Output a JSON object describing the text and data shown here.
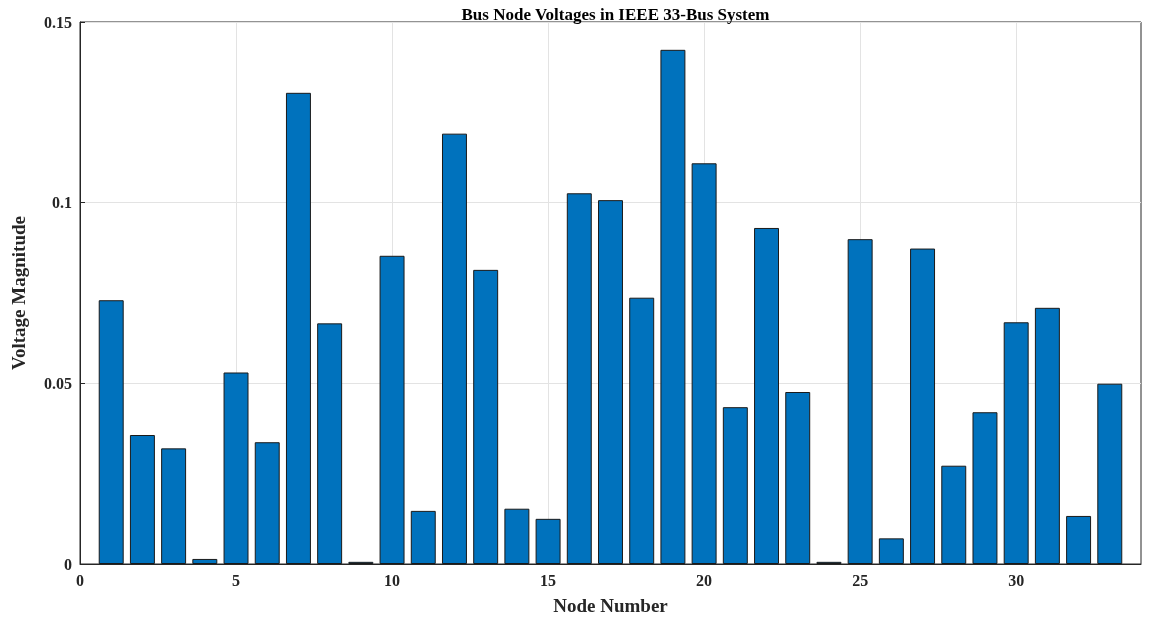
{
  "chart_data": {
    "type": "bar",
    "title": "Bus Node Voltages in IEEE 33-Bus System",
    "xlabel": "Node Number",
    "ylabel": "Voltage Magnitude",
    "x": [
      1,
      2,
      3,
      4,
      5,
      6,
      7,
      8,
      9,
      10,
      11,
      12,
      13,
      14,
      15,
      16,
      17,
      18,
      19,
      20,
      21,
      22,
      23,
      24,
      25,
      26,
      27,
      28,
      29,
      30,
      31,
      32,
      33
    ],
    "values": [
      0.073,
      0.0357,
      0.032,
      0.0014,
      0.053,
      0.0337,
      0.1304,
      0.0666,
      0.0006,
      0.0853,
      0.0147,
      0.1191,
      0.0814,
      0.0153,
      0.0125,
      0.1026,
      0.1007,
      0.0737,
      0.1423,
      0.1109,
      0.0434,
      0.093,
      0.0476,
      0.0006,
      0.0899,
      0.0071,
      0.0873,
      0.0272,
      0.042,
      0.0669,
      0.0709,
      0.0133,
      0.0499
    ],
    "color": "#0072bd",
    "xlim": [
      0,
      34
    ],
    "xticks": [
      0,
      5,
      10,
      15,
      20,
      25,
      30
    ],
    "ylim": [
      0,
      0.15
    ],
    "yticks": [
      0,
      0.05,
      {
        "value": 0.1,
        "label": "0.1"
      },
      0.15
    ],
    "grid": true
  }
}
